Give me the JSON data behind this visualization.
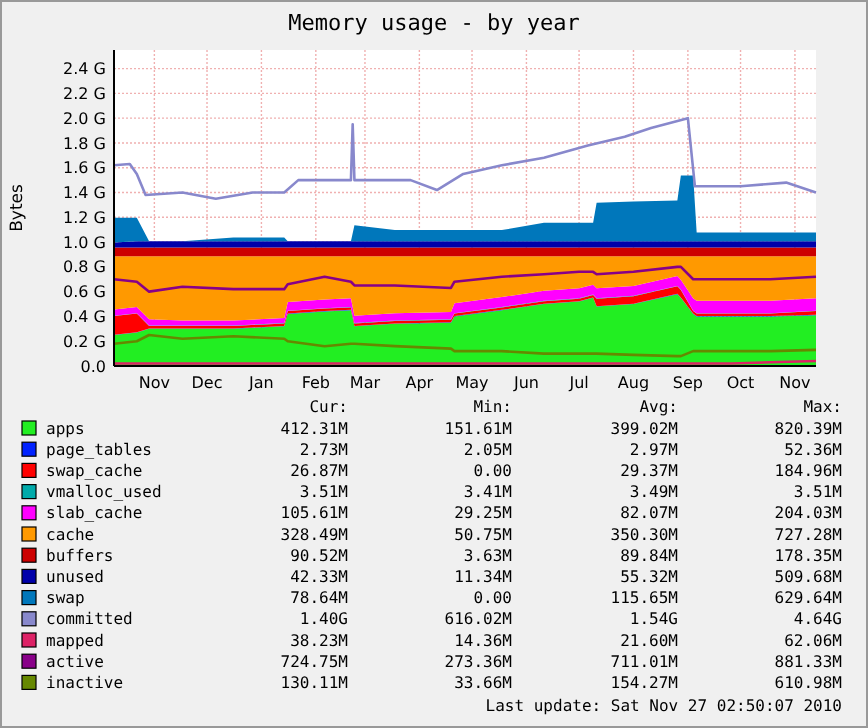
{
  "chart_data": {
    "type": "area",
    "title": "Memory usage - by year",
    "ylabel": "Bytes",
    "stacked": true,
    "grid": true,
    "legend": "bottom",
    "x": [
      "2009-10-23",
      "2009-11-05",
      "2009-11-12",
      "2009-12-01",
      "2009-12-30",
      "2010-01-28",
      "2010-01-30",
      "2010-02-20",
      "2010-03-07",
      "2010-03-09",
      "2010-04-01",
      "2010-05-03",
      "2010-05-05",
      "2010-06-01",
      "2010-06-25",
      "2010-07-15",
      "2010-07-23",
      "2010-07-25",
      "2010-08-15",
      "2010-09-09",
      "2010-09-11",
      "2010-09-18",
      "2010-09-20",
      "2010-10-10",
      "2010-11-01",
      "2010-11-27"
    ],
    "xlim": [
      "2009-10-23",
      "2010-11-27"
    ],
    "xticks": [
      {
        "value": "2009-11-15",
        "label": "Nov"
      },
      {
        "value": "2009-12-15",
        "label": "Dec"
      },
      {
        "value": "2010-01-15",
        "label": "Jan"
      },
      {
        "value": "2010-02-15",
        "label": "Feb"
      },
      {
        "value": "2010-03-15",
        "label": "Mar"
      },
      {
        "value": "2010-04-15",
        "label": "Apr"
      },
      {
        "value": "2010-05-15",
        "label": "May"
      },
      {
        "value": "2010-06-15",
        "label": "Jun"
      },
      {
        "value": "2010-07-15",
        "label": "Jul"
      },
      {
        "value": "2010-08-15",
        "label": "Aug"
      },
      {
        "value": "2010-09-15",
        "label": "Sep"
      },
      {
        "value": "2010-10-15",
        "label": "Oct"
      },
      {
        "value": "2010-11-15",
        "label": "Nov"
      }
    ],
    "ylim": [
      0,
      2.55
    ],
    "yticks": [
      {
        "value": 0,
        "label": "0.0"
      },
      {
        "value": 0.2,
        "label": "0.2 G"
      },
      {
        "value": 0.4,
        "label": "0.4 G"
      },
      {
        "value": 0.6,
        "label": "0.6 G"
      },
      {
        "value": 0.8,
        "label": "0.8 G"
      },
      {
        "value": 1.0,
        "label": "1.0 G"
      },
      {
        "value": 1.2,
        "label": "1.2 G"
      },
      {
        "value": 1.4,
        "label": "1.4 G"
      },
      {
        "value": 1.6,
        "label": "1.6 G"
      },
      {
        "value": 1.8,
        "label": "1.8 G"
      },
      {
        "value": 2.0,
        "label": "2.0 G"
      },
      {
        "value": 2.2,
        "label": "2.2 G"
      },
      {
        "value": 2.4,
        "label": "2.4 G"
      }
    ],
    "series": [
      {
        "name": "apps",
        "color": "#22ee22",
        "values": [
          0.25,
          0.27,
          0.3,
          0.3,
          0.3,
          0.32,
          0.42,
          0.44,
          0.45,
          0.32,
          0.34,
          0.35,
          0.4,
          0.45,
          0.5,
          0.52,
          0.55,
          0.48,
          0.5,
          0.58,
          0.55,
          0.42,
          0.4,
          0.4,
          0.4,
          0.41
        ]
      },
      {
        "name": "page_tables",
        "color": "#0022ff",
        "values": [
          0.003,
          0.003,
          0.003,
          0.003,
          0.003,
          0.003,
          0.003,
          0.003,
          0.003,
          0.003,
          0.003,
          0.003,
          0.003,
          0.003,
          0.003,
          0.003,
          0.003,
          0.003,
          0.003,
          0.003,
          0.003,
          0.003,
          0.003,
          0.003,
          0.003,
          0.003
        ]
      },
      {
        "name": "swap_cache",
        "color": "#ff0000",
        "values": [
          0.15,
          0.15,
          0.02,
          0.02,
          0.02,
          0.02,
          0.02,
          0.02,
          0.02,
          0.02,
          0.02,
          0.02,
          0.02,
          0.02,
          0.02,
          0.02,
          0.02,
          0.06,
          0.06,
          0.06,
          0.06,
          0.02,
          0.02,
          0.02,
          0.02,
          0.03
        ]
      },
      {
        "name": "vmalloc_used",
        "color": "#00aaaa",
        "values": [
          0.0035,
          0.0035,
          0.0035,
          0.0035,
          0.0035,
          0.0035,
          0.0035,
          0.0035,
          0.0035,
          0.0035,
          0.0035,
          0.0035,
          0.0035,
          0.0035,
          0.0035,
          0.0035,
          0.0035,
          0.0035,
          0.0035,
          0.0035,
          0.0035,
          0.0035,
          0.0035,
          0.0035,
          0.0035,
          0.0035
        ]
      },
      {
        "name": "slab_cache",
        "color": "#ff00ff",
        "values": [
          0.05,
          0.05,
          0.05,
          0.04,
          0.04,
          0.04,
          0.07,
          0.07,
          0.07,
          0.06,
          0.06,
          0.06,
          0.08,
          0.08,
          0.08,
          0.08,
          0.08,
          0.08,
          0.08,
          0.08,
          0.08,
          0.1,
          0.1,
          0.1,
          0.1,
          0.1
        ]
      },
      {
        "name": "cache",
        "color": "#ff9900",
        "values": [
          0.43,
          0.41,
          0.51,
          0.52,
          0.52,
          0.5,
          0.37,
          0.35,
          0.34,
          0.48,
          0.46,
          0.45,
          0.38,
          0.33,
          0.28,
          0.26,
          0.23,
          0.26,
          0.24,
          0.16,
          0.19,
          0.34,
          0.36,
          0.36,
          0.36,
          0.34
        ]
      },
      {
        "name": "buffers",
        "color": "#cc0000",
        "values": [
          0.07,
          0.07,
          0.07,
          0.07,
          0.07,
          0.07,
          0.07,
          0.07,
          0.07,
          0.07,
          0.07,
          0.07,
          0.07,
          0.07,
          0.07,
          0.07,
          0.07,
          0.07,
          0.07,
          0.07,
          0.07,
          0.07,
          0.07,
          0.07,
          0.07,
          0.07
        ]
      },
      {
        "name": "unused",
        "color": "#0000aa",
        "values": [
          0.04,
          0.05,
          0.05,
          0.05,
          0.05,
          0.05,
          0.05,
          0.05,
          0.05,
          0.05,
          0.05,
          0.05,
          0.05,
          0.05,
          0.05,
          0.05,
          0.05,
          0.05,
          0.05,
          0.05,
          0.05,
          0.05,
          0.05,
          0.05,
          0.05,
          0.05
        ]
      },
      {
        "name": "swap",
        "color": "#0077bb",
        "values": [
          0.2,
          0.19,
          0.0,
          0.0,
          0.03,
          0.03,
          0.0,
          0.0,
          0.0,
          0.13,
          0.09,
          0.09,
          0.09,
          0.09,
          0.15,
          0.15,
          0.15,
          0.31,
          0.32,
          0.33,
          0.53,
          0.53,
          0.07,
          0.07,
          0.07,
          0.07
        ]
      },
      {
        "name": "committed",
        "type": "line",
        "color": "#8888cc",
        "x": [
          "2009-10-23",
          "2009-11-01",
          "2009-11-05",
          "2009-11-10",
          "2009-12-01",
          "2009-12-20",
          "2010-01-10",
          "2010-01-28",
          "2010-02-05",
          "2010-03-07",
          "2010-03-08",
          "2010-03-09",
          "2010-04-10",
          "2010-04-25",
          "2010-05-10",
          "2010-06-01",
          "2010-06-25",
          "2010-07-20",
          "2010-08-10",
          "2010-08-25",
          "2010-09-15",
          "2010-09-19",
          "2010-10-15",
          "2010-11-10",
          "2010-11-27"
        ],
        "values": [
          1.62,
          1.63,
          1.55,
          1.38,
          1.4,
          1.35,
          1.4,
          1.4,
          1.5,
          1.5,
          1.95,
          1.5,
          1.5,
          1.42,
          1.55,
          1.62,
          1.68,
          1.78,
          1.85,
          1.92,
          2.0,
          1.45,
          1.45,
          1.48,
          1.4
        ]
      },
      {
        "name": "mapped",
        "type": "line",
        "color": "#dd2266",
        "values": [
          0.02,
          0.02,
          0.02,
          0.02,
          0.02,
          0.02,
          0.02,
          0.02,
          0.02,
          0.02,
          0.02,
          0.02,
          0.02,
          0.02,
          0.02,
          0.02,
          0.02,
          0.02,
          0.02,
          0.02,
          0.02,
          0.02,
          0.02,
          0.02,
          0.03,
          0.04
        ]
      },
      {
        "name": "active",
        "type": "line",
        "color": "#880088",
        "values": [
          0.7,
          0.68,
          0.6,
          0.64,
          0.62,
          0.62,
          0.66,
          0.72,
          0.68,
          0.65,
          0.65,
          0.63,
          0.68,
          0.72,
          0.74,
          0.76,
          0.76,
          0.74,
          0.76,
          0.8,
          0.8,
          0.7,
          0.7,
          0.7,
          0.7,
          0.72
        ]
      },
      {
        "name": "inactive",
        "type": "line",
        "color": "#668800",
        "values": [
          0.18,
          0.2,
          0.25,
          0.22,
          0.24,
          0.22,
          0.2,
          0.16,
          0.18,
          0.18,
          0.16,
          0.14,
          0.12,
          0.12,
          0.1,
          0.1,
          0.1,
          0.1,
          0.09,
          0.08,
          0.08,
          0.12,
          0.12,
          0.12,
          0.12,
          0.13
        ]
      }
    ],
    "annotations": [
      "Cur:",
      "Min:",
      "Avg:",
      "Max:",
      "412.31M",
      "151.61M",
      "399.02M",
      "820.39M",
      "2.73M",
      "2.05M",
      "2.97M",
      "52.36M",
      "26.87M",
      "0.00",
      "29.37M",
      "184.96M",
      "3.51M",
      "3.41M",
      "3.49M",
      "3.51M",
      "105.61M",
      "29.25M",
      "82.07M",
      "204.03M",
      "328.49M",
      "50.75M",
      "350.30M",
      "727.28M",
      "90.52M",
      "3.63M",
      "89.84M",
      "178.35M",
      "42.33M",
      "11.34M",
      "55.32M",
      "509.68M",
      "78.64M",
      "0.00",
      "115.65M",
      "629.64M",
      "1.40G",
      "616.02M",
      "1.54G",
      "4.64G",
      "38.23M",
      "14.36M",
      "21.60M",
      "62.06M",
      "724.75M",
      "273.36M",
      "711.01M",
      "881.33M",
      "130.11M",
      "33.66M",
      "154.27M",
      "610.98M",
      "Last update: Sat Nov 27 02:50:07 2010"
    ]
  }
}
